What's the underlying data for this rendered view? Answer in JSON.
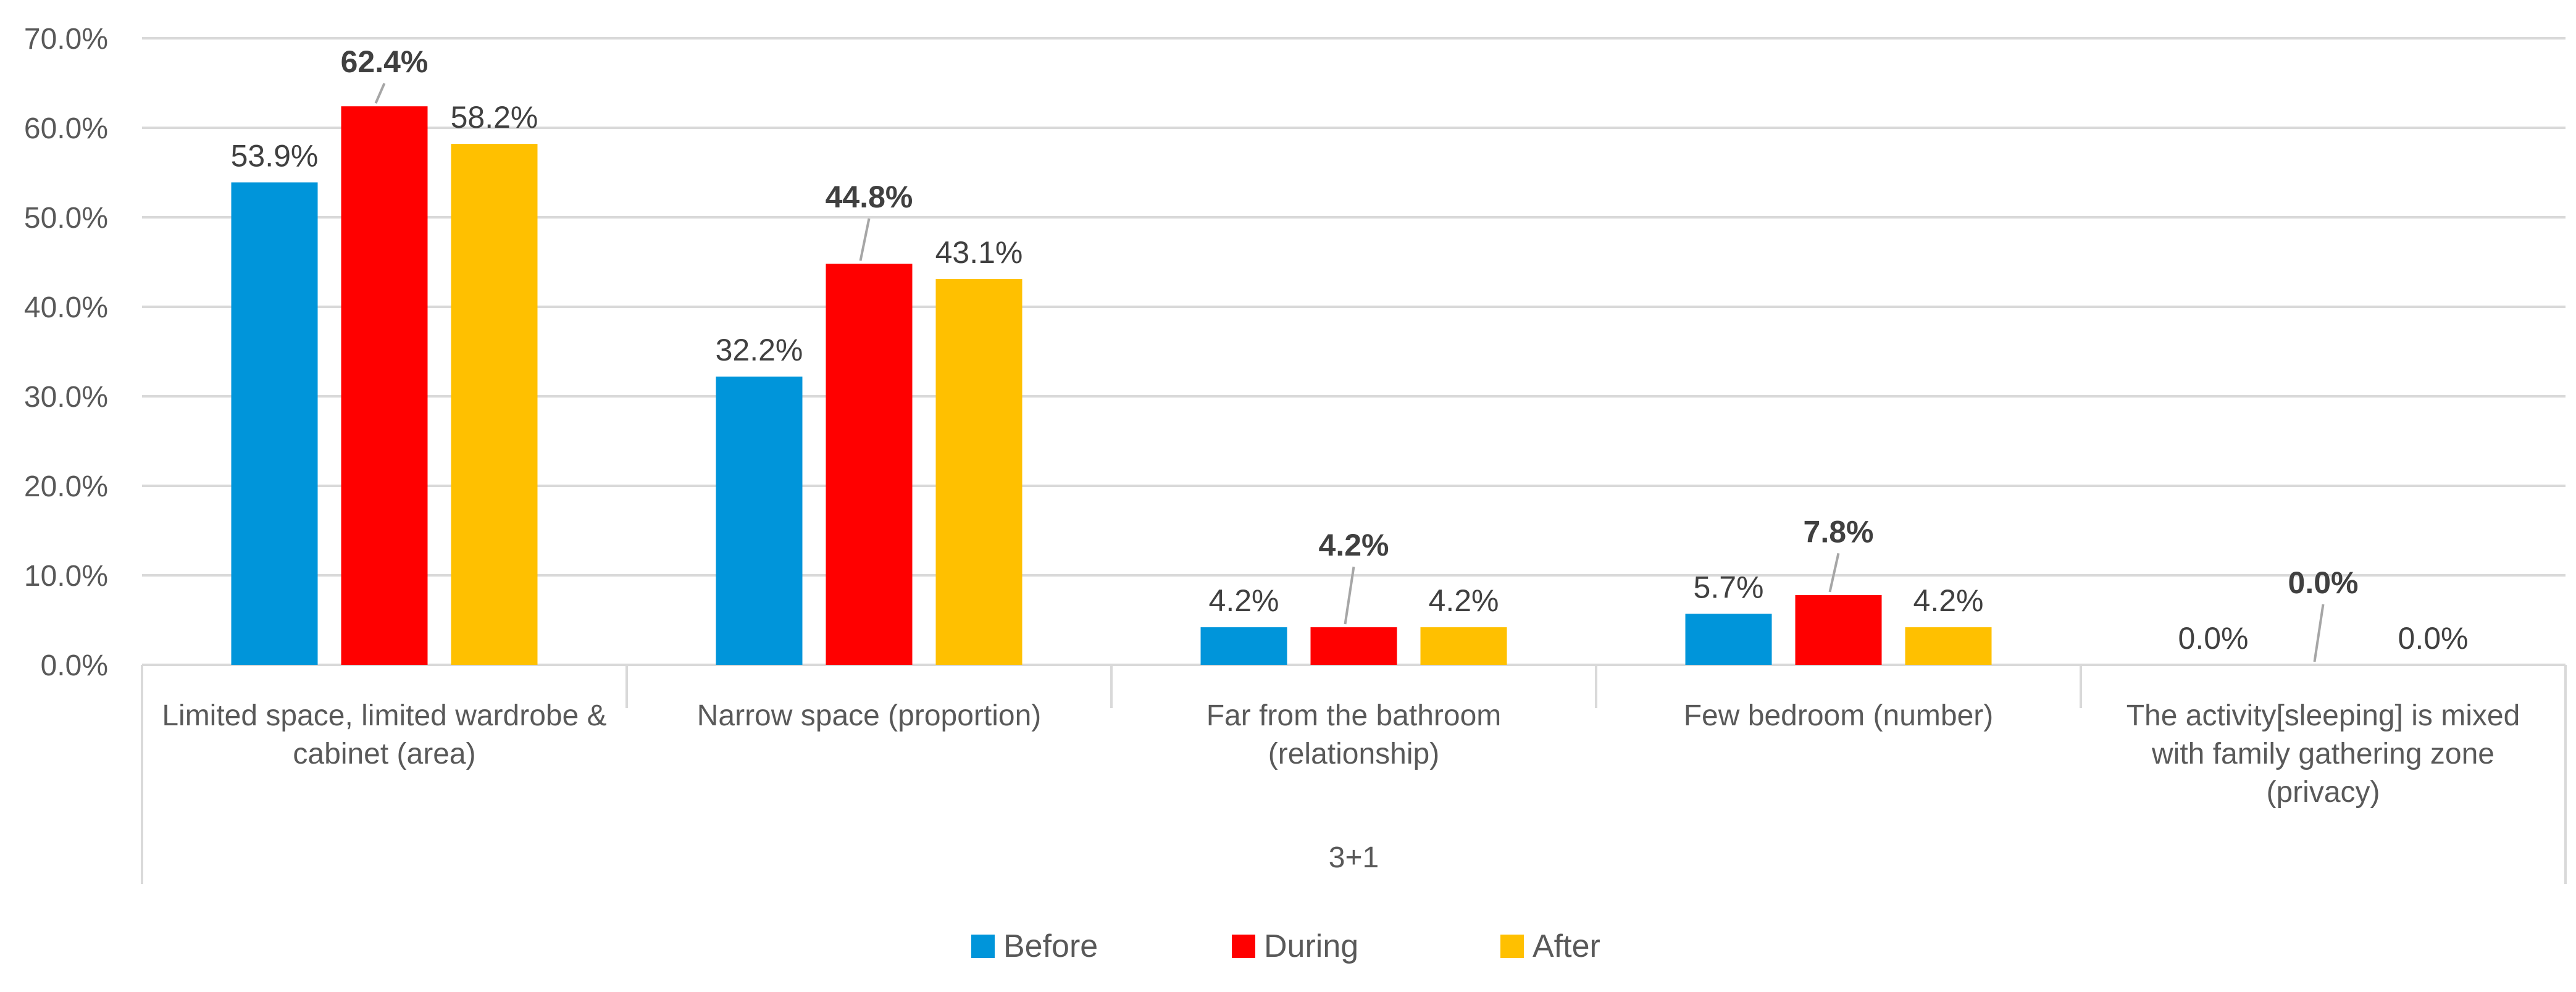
{
  "chart_data": {
    "type": "bar",
    "title": "",
    "xlabel": "",
    "ylabel": "",
    "group_label": "3+1",
    "ylim": [
      0,
      70
    ],
    "y_ticks": [
      "0.0%",
      "10.0%",
      "20.0%",
      "30.0%",
      "40.0%",
      "50.0%",
      "60.0%",
      "70.0%"
    ],
    "categories": [
      [
        "Limited space, limited wardrobe &",
        "cabinet (area)"
      ],
      [
        "Narrow space (proportion)"
      ],
      [
        "Far from the bathroom",
        "(relationship)"
      ],
      [
        "Few bedroom (number)"
      ],
      [
        "The activity[sleeping] is mixed",
        "with family gathering zone",
        "(privacy)"
      ]
    ],
    "series": [
      {
        "name": "Before",
        "color": "#0095DA",
        "values": [
          53.9,
          32.2,
          4.2,
          5.7,
          0.0
        ],
        "labels": [
          "53.9%",
          "32.2%",
          "4.2%",
          "5.7%",
          "0.0%"
        ]
      },
      {
        "name": "During",
        "color": "#FF0000",
        "values": [
          62.4,
          44.8,
          4.2,
          7.8,
          0.0
        ],
        "labels": [
          "62.4%",
          "44.8%",
          "4.2%",
          "7.8%",
          "0.0%"
        ]
      },
      {
        "name": "After",
        "color": "#FFC000",
        "values": [
          58.2,
          43.1,
          4.2,
          4.2,
          0.0
        ],
        "labels": [
          "58.2%",
          "43.1%",
          "4.2%",
          "4.2%",
          "0.0%"
        ]
      }
    ],
    "grid": true,
    "legend": "bottom"
  }
}
